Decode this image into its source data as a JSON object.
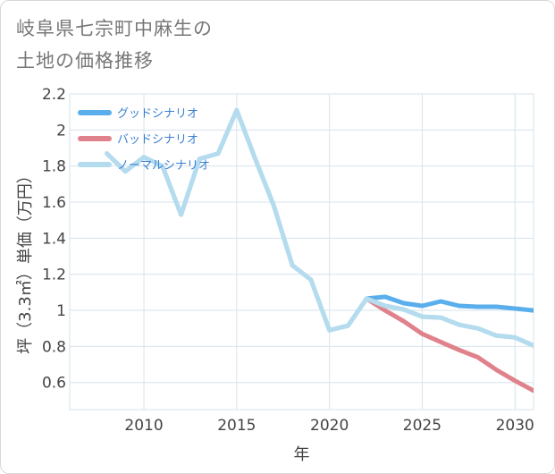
{
  "title_lines": [
    "岐阜県七宗町中麻生の",
    "土地の価格推移"
  ],
  "chart_data": {
    "type": "line",
    "title": "岐阜県七宗町中麻生の土地の価格推移",
    "xlabel": "年",
    "ylabel": "坪（3.3㎡）単価（万円）",
    "xlim": [
      2006,
      2031
    ],
    "ylim": [
      0.45,
      2.2
    ],
    "x_ticks": [
      2010,
      2015,
      2020,
      2025,
      2030
    ],
    "y_ticks": [
      0.6,
      0.8,
      1,
      1.2,
      1.4,
      1.6,
      1.8,
      2,
      2.2
    ],
    "x_tick_labels": [
      "2010",
      "2015",
      "2020",
      "2025",
      "2030"
    ],
    "y_tick_labels": [
      "0.6",
      "0.8",
      "1",
      "1.2",
      "1.4",
      "1.6",
      "1.8",
      "2",
      "2.2"
    ],
    "grid": true,
    "legend_position": "top-left",
    "series": [
      {
        "name": "グッドシナリオ",
        "color": "#5aaeeb",
        "x": [
          2022,
          2023,
          2024,
          2025,
          2026,
          2027,
          2028,
          2029,
          2030,
          2031
        ],
        "y": [
          1.065,
          1.075,
          1.04,
          1.025,
          1.05,
          1.025,
          1.02,
          1.02,
          1.01,
          1.0
        ]
      },
      {
        "name": "バッドシナリオ",
        "color": "#e0828c",
        "x": [
          2022,
          2023,
          2024,
          2025,
          2026,
          2027,
          2028,
          2029,
          2030,
          2031
        ],
        "y": [
          1.065,
          1.0,
          0.94,
          0.87,
          0.825,
          0.78,
          0.74,
          0.67,
          0.61,
          0.555
        ]
      },
      {
        "name": "ノーマルシナリオ",
        "color": "#b4dcee",
        "x": [
          2008,
          2009,
          2010,
          2011,
          2012,
          2013,
          2014,
          2015,
          2016,
          2017,
          2018,
          2019,
          2020,
          2021,
          2022,
          2023,
          2024,
          2025,
          2026,
          2027,
          2028,
          2029,
          2030,
          2031
        ],
        "y": [
          1.87,
          1.77,
          1.85,
          1.8,
          1.53,
          1.84,
          1.87,
          2.11,
          1.84,
          1.58,
          1.25,
          1.17,
          0.89,
          0.915,
          1.065,
          1.025,
          1.005,
          0.965,
          0.96,
          0.92,
          0.9,
          0.86,
          0.85,
          0.805
        ]
      }
    ]
  }
}
